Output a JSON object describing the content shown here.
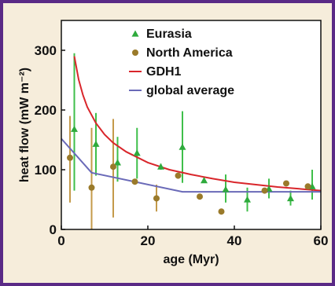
{
  "chart_data": {
    "type": "scatter",
    "title": "",
    "xlabel": "age (Myr)",
    "ylabel": "heat flow (mW m⁻²)",
    "xlim": [
      0,
      60
    ],
    "ylim": [
      0,
      350
    ],
    "xticks": [
      0,
      20,
      40,
      60
    ],
    "yticks": [
      0,
      100,
      200,
      300
    ],
    "grid": false,
    "legend_position": "top",
    "series": [
      {
        "name": "Eurasia",
        "kind": "points-with-error",
        "marker": "triangle",
        "color": "#2eaa3c",
        "errorbar_color": "#3fbf4a",
        "points": [
          {
            "x": 3,
            "y": 168,
            "low": 65,
            "high": 295
          },
          {
            "x": 8,
            "y": 143,
            "low": 90,
            "high": 195
          },
          {
            "x": 13,
            "y": 112,
            "low": 80,
            "high": 155
          },
          {
            "x": 17.5,
            "y": 128,
            "low": 85,
            "high": 170
          },
          {
            "x": 23,
            "y": 105,
            "low": 100,
            "high": 110
          },
          {
            "x": 28,
            "y": 138,
            "low": 78,
            "high": 198
          },
          {
            "x": 33,
            "y": 82,
            "low": 78,
            "high": 87
          },
          {
            "x": 38,
            "y": 67,
            "low": 45,
            "high": 92
          },
          {
            "x": 43,
            "y": 50,
            "low": 30,
            "high": 70
          },
          {
            "x": 48,
            "y": 68,
            "low": 52,
            "high": 85
          },
          {
            "x": 53,
            "y": 52,
            "low": 40,
            "high": 65
          },
          {
            "x": 58,
            "y": 72,
            "low": 50,
            "high": 100
          }
        ]
      },
      {
        "name": "North America",
        "kind": "points-with-error",
        "marker": "circle",
        "color": "#9a7a2a",
        "errorbar_color": "#c49a4a",
        "points": [
          {
            "x": 2,
            "y": 120,
            "low": 45,
            "high": 190
          },
          {
            "x": 7,
            "y": 70,
            "low": 0,
            "high": 170
          },
          {
            "x": 12,
            "y": 105,
            "low": 20,
            "high": 185
          },
          {
            "x": 17,
            "y": 80,
            "low": 78,
            "high": 82
          },
          {
            "x": 22,
            "y": 52,
            "low": 30,
            "high": 75
          },
          {
            "x": 27,
            "y": 90,
            "low": 88,
            "high": 92
          },
          {
            "x": 32,
            "y": 55,
            "low": 53,
            "high": 57
          },
          {
            "x": 37,
            "y": 30,
            "low": 28,
            "high": 32
          },
          {
            "x": 47,
            "y": 65,
            "low": 63,
            "high": 67
          },
          {
            "x": 52,
            "y": 77,
            "low": 75,
            "high": 79
          },
          {
            "x": 57,
            "y": 72,
            "low": 70,
            "high": 74
          }
        ]
      },
      {
        "name": "GDH1",
        "kind": "line",
        "color": "#d9262b",
        "x": [
          3,
          4,
          5,
          6,
          8,
          10,
          12,
          15,
          20,
          25,
          30,
          35,
          40,
          45,
          50,
          55,
          60
        ],
        "y": [
          290,
          251,
          225,
          205,
          178,
          159,
          145,
          130,
          112,
          100,
          92,
          85,
          79,
          75,
          71,
          68,
          65
        ]
      },
      {
        "name": "global average",
        "kind": "line",
        "color": "#6a6ab8",
        "x": [
          0,
          7,
          28,
          60
        ],
        "y": [
          152,
          95,
          63,
          63
        ]
      }
    ]
  }
}
